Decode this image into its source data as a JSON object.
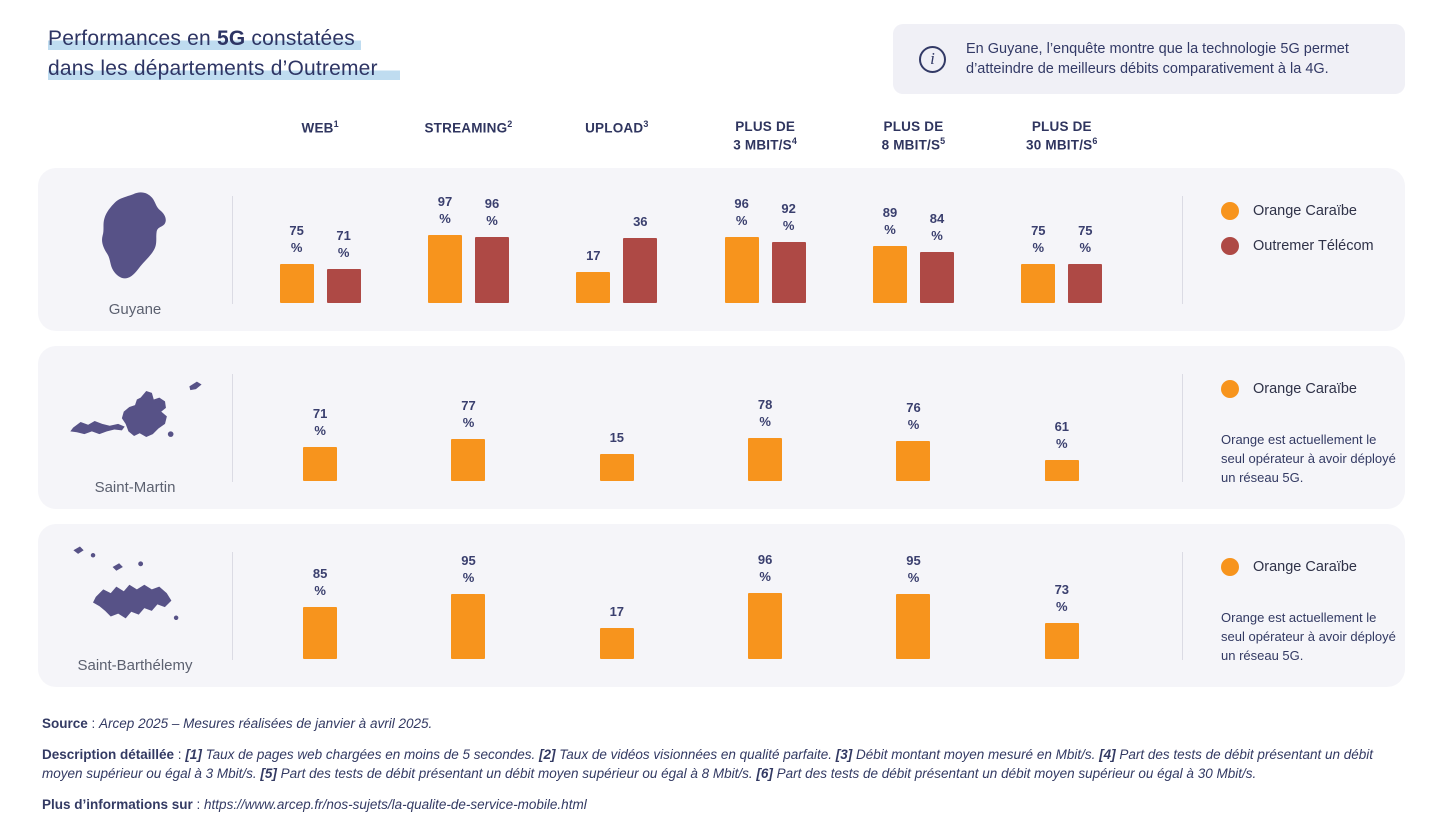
{
  "page": {
    "title_line1_pre": "Performances en ",
    "title_bold": "5G",
    "title_line1_post": " constatées",
    "title_line2": "dans les départements d’Outremer"
  },
  "info_box": {
    "icon": "info-icon",
    "icon_glyph": "i",
    "text": "En Guyane, l’enquête montre que la technologie 5G permet d’atteindre de meilleurs débits comparativement à la 4G."
  },
  "columns": [
    {
      "lines": [
        "WEB"
      ],
      "sup": "1"
    },
    {
      "lines": [
        "STREAMING"
      ],
      "sup": "2"
    },
    {
      "lines": [
        "UPLOAD"
      ],
      "sup": "3"
    },
    {
      "lines": [
        "PLUS DE",
        "3 MBIT/S"
      ],
      "sup": "4"
    },
    {
      "lines": [
        "PLUS DE",
        "8 MBIT/S"
      ],
      "sup": "5"
    },
    {
      "lines": [
        "PLUS DE",
        "30 MBIT/S"
      ],
      "sup": "6"
    }
  ],
  "colors": {
    "orange": "#F7941D",
    "red": "#AE4945",
    "navy": "#333A66",
    "map_purple": "#575287",
    "highlight_blue": "#BFDCF0",
    "card_bg": "#F5F5F9",
    "infobox_bg": "#F0F0F6"
  },
  "chart_data": {
    "type": "bar",
    "title": "Performances en 5G constatées dans les départements d’Outremer",
    "categories": [
      "WEB (%)",
      "STREAMING (%)",
      "UPLOAD (Mbit/s)",
      "PLUS DE 3 MBIT/S (%)",
      "PLUS DE 8 MBIT/S (%)",
      "PLUS DE 30 MBIT/S (%)"
    ],
    "percent_columns": [
      true,
      true,
      false,
      true,
      true,
      true
    ],
    "ylim": [
      0,
      100
    ],
    "legend_position": "right",
    "rows": [
      {
        "region": "Guyane",
        "map": "guyane",
        "series": [
          {
            "name": "Orange Caraïbe",
            "color": "#F7941D",
            "values": [
              75,
              97,
              17,
              96,
              89,
              75
            ]
          },
          {
            "name": "Outremer Télécom",
            "color": "#AE4945",
            "values": [
              71,
              96,
              36,
              92,
              84,
              75
            ]
          }
        ],
        "note": null
      },
      {
        "region": "Saint-Martin",
        "map": "saintmartin",
        "series": [
          {
            "name": "Orange Caraïbe",
            "color": "#F7941D",
            "values": [
              71,
              77,
              15,
              78,
              76,
              61
            ]
          }
        ],
        "note": "Orange est actuellement le seul opérateur à avoir déployé un réseau 5G."
      },
      {
        "region": "Saint-Barthélemy",
        "map": "saintbarth",
        "series": [
          {
            "name": "Orange Caraïbe",
            "color": "#F7941D",
            "values": [
              85,
              95,
              17,
              96,
              95,
              73
            ]
          }
        ],
        "note": "Orange est actuellement le seul opérateur à avoir déployé un réseau 5G."
      }
    ]
  },
  "footer": {
    "sep": " : ",
    "source_label": "Source",
    "source_text": "Arcep 2025 – Mesures réalisées de janvier à avril 2025.",
    "desc_label": "Description détaillée",
    "desc_segments": [
      {
        "marker": "[1]",
        "text": "Taux de pages web chargées en moins de 5 secondes."
      },
      {
        "marker": "[2]",
        "text": "Taux de vidéos visionnées en qualité parfaite."
      },
      {
        "marker": "[3]",
        "text": "Débit montant moyen mesuré en Mbit/s."
      },
      {
        "marker": "[4]",
        "text": "Part des tests de débit présentant un débit moyen supérieur ou égal à 3 Mbit/s."
      },
      {
        "marker": "[5]",
        "text": "Part des tests de débit présentant un débit moyen supérieur ou égal à 8 Mbit/s."
      },
      {
        "marker": "[6]",
        "text": "Part des tests de débit présentant un débit moyen supérieur ou égal à 30 Mbit/s."
      }
    ],
    "more_label": "Plus d’informations sur",
    "more_url": "https://www.arcep.fr/nos-sujets/la-qualite-de-service-mobile.html"
  }
}
